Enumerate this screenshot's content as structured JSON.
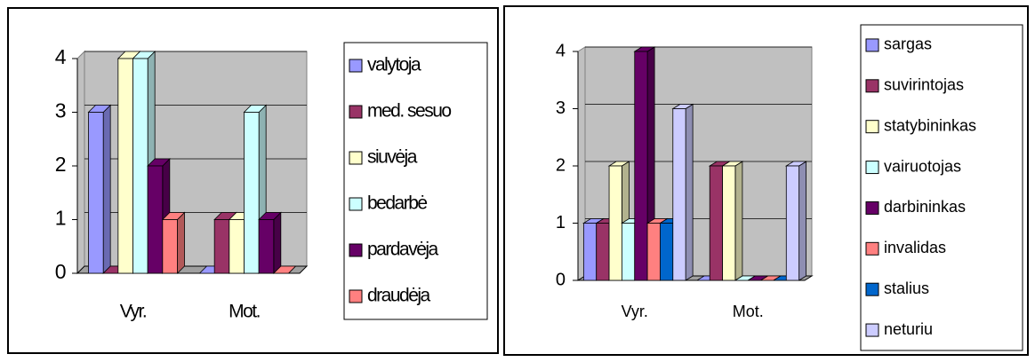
{
  "chart_data": [
    {
      "type": "bar3d",
      "categories": [
        "Vyr.",
        "Mot."
      ],
      "ylim": [
        0,
        4
      ],
      "yticks": [
        0,
        1,
        2,
        3,
        4
      ],
      "grid": true,
      "series": [
        {
          "name": "valytoja",
          "color": "#9999ff",
          "values": [
            3,
            0
          ]
        },
        {
          "name": "med. sesuo",
          "color": "#993366",
          "values": [
            0,
            1
          ]
        },
        {
          "name": "siuvėja",
          "color": "#ffffcc",
          "values": [
            4,
            1
          ]
        },
        {
          "name": "bedarbė",
          "color": "#ccffff",
          "values": [
            4,
            3
          ]
        },
        {
          "name": "pardavėja",
          "color": "#660066",
          "values": [
            2,
            1
          ]
        },
        {
          "name": "draudėja",
          "color": "#ff8080",
          "values": [
            1,
            0
          ]
        }
      ]
    },
    {
      "type": "bar3d",
      "categories": [
        "Vyr.",
        "Mot."
      ],
      "ylim": [
        0,
        4
      ],
      "yticks": [
        0,
        1,
        2,
        3,
        4
      ],
      "grid": true,
      "series": [
        {
          "name": "sargas",
          "color": "#9999ff",
          "values": [
            1,
            0
          ]
        },
        {
          "name": "suvirintojas",
          "color": "#993366",
          "values": [
            1,
            2
          ]
        },
        {
          "name": "statybininkas",
          "color": "#ffffcc",
          "values": [
            2,
            2
          ]
        },
        {
          "name": "vairuotojas",
          "color": "#ccffff",
          "values": [
            1,
            0
          ]
        },
        {
          "name": "darbininkas",
          "color": "#660066",
          "values": [
            4,
            0
          ]
        },
        {
          "name": "invalidas",
          "color": "#ff8080",
          "values": [
            1,
            0
          ]
        },
        {
          "name": "stalius",
          "color": "#0066cc",
          "values": [
            1,
            0
          ]
        },
        {
          "name": "neturiu",
          "color": "#ccccff",
          "values": [
            3,
            2
          ]
        }
      ]
    }
  ]
}
